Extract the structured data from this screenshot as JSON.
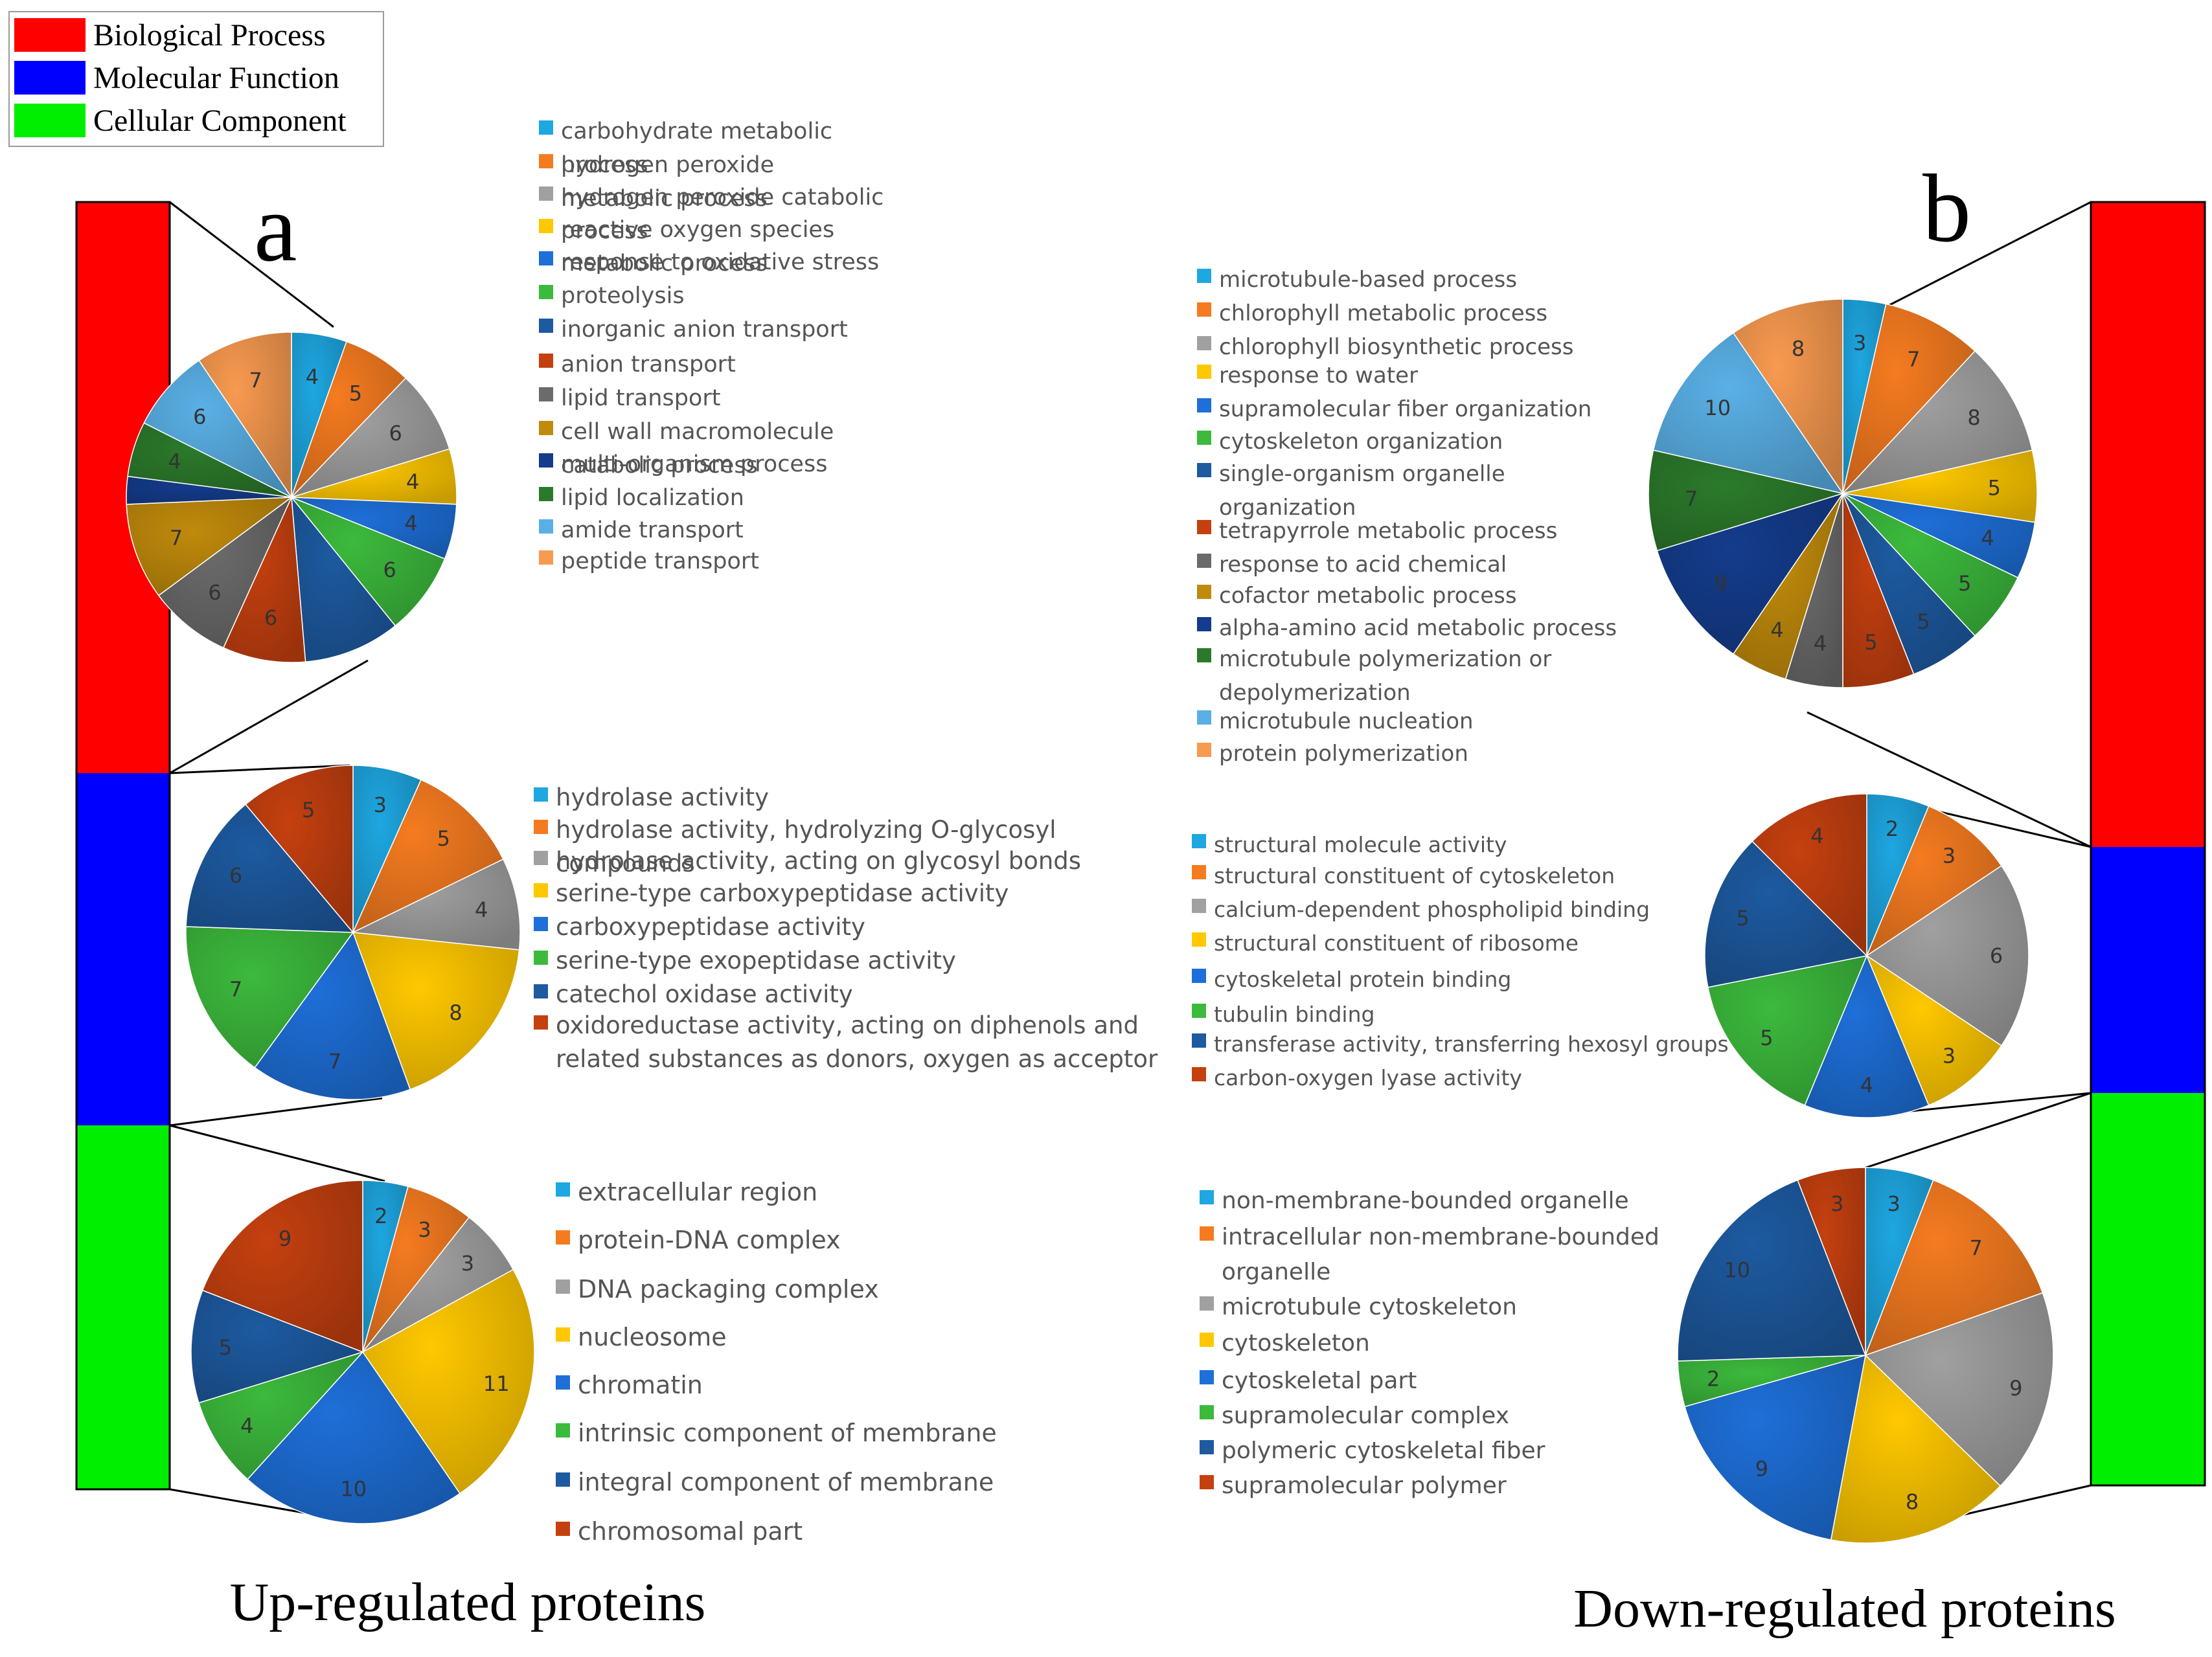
{
  "category_legend": [
    {
      "label": "Biological Process",
      "color": "#ff0000"
    },
    {
      "label": "Molecular Function",
      "color": "#0000ff"
    },
    {
      "label": "Cellular Component",
      "color": "#00ee00"
    }
  ],
  "panel_letters": {
    "a": "a",
    "b": "b"
  },
  "captions": {
    "up": "Up-regulated proteins",
    "down": "Down-regulated proteins"
  },
  "chart_data": [
    {
      "type": "pie",
      "panel": "a",
      "category": "Biological Process",
      "categories": [
        "carbohydrate metabolic process",
        "hydrogen peroxide metabolic process",
        "hydrogen peroxide catabolic process",
        "reactive oxygen species metabolic process",
        "response to oxidative stress",
        "proteolysis",
        "inorganic anion transport",
        "anion transport",
        "lipid transport",
        "cell wall macromolecule catabolic process",
        "multi-organism process",
        "lipid localization",
        "amide transport",
        "peptide transport"
      ],
      "legend_lines": [
        [
          "carbohydrate metabolic",
          "process"
        ],
        [
          "hydrogen peroxide",
          "metabolic process"
        ],
        [
          "hydrogen peroxide catabolic",
          "process"
        ],
        [
          "reactive oxygen species",
          "metabolic process"
        ],
        [
          "response to oxidative stress"
        ],
        [
          "proteolysis"
        ],
        [
          "inorganic anion transport"
        ],
        [
          "anion transport"
        ],
        [
          "lipid transport"
        ],
        [
          "cell wall macromolecule",
          "catabolic process"
        ],
        [
          "multi-organism process"
        ],
        [
          "lipid localization"
        ],
        [
          "amide transport"
        ],
        [
          "peptide transport"
        ]
      ],
      "values": [
        4,
        5,
        6,
        4,
        4,
        6,
        7,
        6,
        6,
        7,
        2,
        4,
        6,
        7
      ],
      "data_labels": [
        "4",
        "5",
        "6",
        "4",
        "4",
        "6",
        "",
        "6",
        "6",
        "7",
        "",
        "4",
        "6",
        "7"
      ],
      "colors": [
        "#1ea7e1",
        "#f57b20",
        "#a0a0a0",
        "#ffc800",
        "#1e6fd9",
        "#3cba3c",
        "#1d5aa0",
        "#c5400f",
        "#6b6b6b",
        "#c08a0c",
        "#143c8c",
        "#2b7a2b",
        "#5ab0e6",
        "#f89a50"
      ]
    },
    {
      "type": "pie",
      "panel": "a",
      "category": "Molecular Function",
      "categories": [
        "hydrolase activity",
        "hydrolase activity, hydrolyzing O-glycosyl compounds",
        "hydrolase activity, acting on glycosyl bonds",
        "serine-type carboxypeptidase activity",
        "carboxypeptidase activity",
        "serine-type exopeptidase activity",
        "catechol oxidase activity",
        "oxidoreductase activity, acting on diphenols and related substances as donors, oxygen as acceptor"
      ],
      "legend_lines": [
        [
          "hydrolase activity"
        ],
        [
          "hydrolase activity, hydrolyzing O-glycosyl",
          "compounds"
        ],
        [
          "hydrolase activity, acting on glycosyl bonds"
        ],
        [
          "serine-type carboxypeptidase activity"
        ],
        [
          "carboxypeptidase activity"
        ],
        [
          "serine-type exopeptidase activity"
        ],
        [
          "catechol oxidase activity"
        ],
        [
          "oxidoreductase activity, acting on diphenols and",
          "related substances as donors, oxygen as acceptor"
        ]
      ],
      "values": [
        3,
        5,
        4,
        8,
        7,
        7,
        6,
        5
      ],
      "data_labels": [
        "3",
        "5",
        "4",
        "8",
        "7",
        "7",
        "6",
        "5"
      ],
      "colors": [
        "#1ea7e1",
        "#f57b20",
        "#a0a0a0",
        "#ffc800",
        "#1e6fd9",
        "#3cba3c",
        "#1d5aa0",
        "#c5400f"
      ]
    },
    {
      "type": "pie",
      "panel": "a",
      "category": "Cellular Component",
      "categories": [
        "extracellular region",
        "protein-DNA complex",
        "DNA packaging complex",
        "nucleosome",
        "chromatin",
        "intrinsic component of membrane",
        "integral component of membrane",
        "chromosomal part"
      ],
      "legend_lines": [
        [
          "extracellular region"
        ],
        [
          "protein-DNA complex"
        ],
        [
          "DNA packaging complex"
        ],
        [
          "nucleosome"
        ],
        [
          "chromatin"
        ],
        [
          "intrinsic component of membrane"
        ],
        [
          "integral component of membrane"
        ],
        [
          "chromosomal part"
        ]
      ],
      "values": [
        2,
        3,
        3,
        11,
        10,
        4,
        5,
        9
      ],
      "data_labels": [
        "2",
        "3",
        "3",
        "11",
        "10",
        "4",
        "5",
        "9"
      ],
      "colors": [
        "#1ea7e1",
        "#f57b20",
        "#a0a0a0",
        "#ffc800",
        "#1e6fd9",
        "#3cba3c",
        "#1d5aa0",
        "#c5400f"
      ]
    },
    {
      "type": "pie",
      "panel": "b",
      "category": "Biological Process",
      "categories": [
        "microtubule-based process",
        "chlorophyll metabolic process",
        "chlorophyll biosynthetic process",
        "response to water",
        "supramolecular fiber organization",
        "cytoskeleton organization",
        "single-organism organelle organization",
        "tetrapyrrole metabolic process",
        "response to acid chemical",
        "cofactor metabolic process",
        "alpha-amino acid metabolic process",
        "microtubule polymerization or depolymerization",
        "microtubule nucleation",
        "protein polymerization"
      ],
      "legend_lines": [
        [
          "microtubule-based process"
        ],
        [
          "chlorophyll metabolic process"
        ],
        [
          "chlorophyll biosynthetic process"
        ],
        [
          "response to water"
        ],
        [
          "supramolecular fiber organization"
        ],
        [
          "cytoskeleton organization"
        ],
        [
          "single-organism organelle",
          "organization"
        ],
        [
          "tetrapyrrole metabolic process"
        ],
        [
          "response to acid chemical"
        ],
        [
          "cofactor metabolic process"
        ],
        [
          "alpha-amino acid metabolic process"
        ],
        [
          "microtubule polymerization or",
          "depolymerization"
        ],
        [
          "microtubule nucleation"
        ],
        [
          "protein polymerization"
        ]
      ],
      "values": [
        3,
        7,
        8,
        5,
        4,
        5,
        5,
        5,
        4,
        4,
        9,
        7,
        10,
        8
      ],
      "data_labels": [
        "3",
        "7",
        "8",
        "5",
        "4",
        "5",
        "5",
        "5",
        "4",
        "4",
        "9",
        "7",
        "10",
        "8"
      ],
      "colors": [
        "#1ea7e1",
        "#f57b20",
        "#a0a0a0",
        "#ffc800",
        "#1e6fd9",
        "#3cba3c",
        "#1d5aa0",
        "#c5400f",
        "#6b6b6b",
        "#c08a0c",
        "#143c8c",
        "#2b7a2b",
        "#5ab0e6",
        "#f89a50"
      ]
    },
    {
      "type": "pie",
      "panel": "b",
      "category": "Molecular Function",
      "categories": [
        "structural molecule activity",
        "structural constituent of cytoskeleton",
        "calcium-dependent phospholipid binding",
        "structural constituent of ribosome",
        "cytoskeletal protein binding",
        "tubulin binding",
        "transferase activity, transferring hexosyl groups",
        "carbon-oxygen lyase activity"
      ],
      "legend_lines": [
        [
          "structural molecule activity"
        ],
        [
          "structural constituent of cytoskeleton"
        ],
        [
          "calcium-dependent phospholipid binding"
        ],
        [
          "structural constituent of ribosome"
        ],
        [
          "cytoskeletal protein binding"
        ],
        [
          "tubulin binding"
        ],
        [
          "transferase activity, transferring hexosyl groups"
        ],
        [
          "carbon-oxygen lyase activity"
        ]
      ],
      "values": [
        2,
        3,
        6,
        3,
        4,
        5,
        5,
        4
      ],
      "data_labels": [
        "2",
        "3",
        "6",
        "3",
        "4",
        "5",
        "5",
        "4"
      ],
      "colors": [
        "#1ea7e1",
        "#f57b20",
        "#a0a0a0",
        "#ffc800",
        "#1e6fd9",
        "#3cba3c",
        "#1d5aa0",
        "#c5400f"
      ]
    },
    {
      "type": "pie",
      "panel": "b",
      "category": "Cellular Component",
      "categories": [
        "non-membrane-bounded organelle",
        "intracellular non-membrane-bounded organelle",
        "microtubule cytoskeleton",
        "cytoskeleton",
        "cytoskeletal part",
        "supramolecular complex",
        "polymeric cytoskeletal fiber",
        "supramolecular polymer"
      ],
      "legend_lines": [
        [
          "non-membrane-bounded organelle"
        ],
        [
          "intracellular non-membrane-bounded",
          "organelle"
        ],
        [
          "microtubule cytoskeleton"
        ],
        [
          "cytoskeleton"
        ],
        [
          "cytoskeletal part"
        ],
        [
          "supramolecular complex"
        ],
        [
          "polymeric cytoskeletal fiber"
        ],
        [
          "supramolecular polymer"
        ]
      ],
      "values": [
        3,
        7,
        9,
        8,
        9,
        2,
        10,
        3
      ],
      "data_labels": [
        "3",
        "7",
        "9",
        "8",
        "9",
        "2",
        "10",
        "3"
      ],
      "colors": [
        "#1ea7e1",
        "#f57b20",
        "#a0a0a0",
        "#ffc800",
        "#1e6fd9",
        "#3cba3c",
        "#1d5aa0",
        "#c5400f"
      ]
    }
  ]
}
